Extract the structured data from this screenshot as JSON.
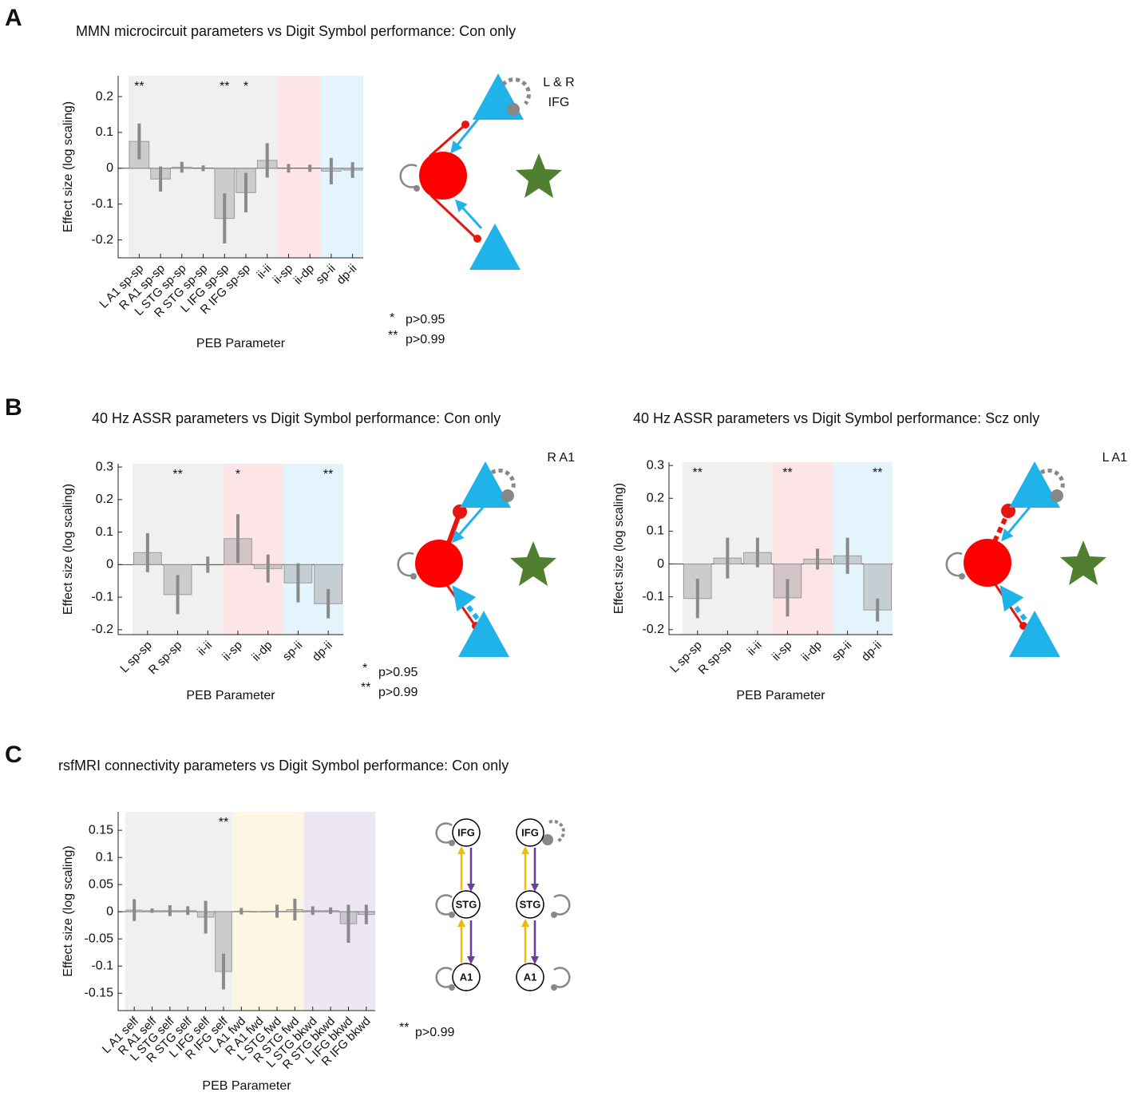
{
  "chart_data": [
    {
      "type": "bar",
      "title": "MMN microcircuit parameters vs Digit Symbol performance: Con only",
      "xlabel": "PEB Parameter",
      "ylabel": "Effect size (log scaling)",
      "categories": [
        "L A1 sp-sp",
        "R A1 sp-sp",
        "L STG sp-sp",
        "R STG sp-sp",
        "L IFG sp-sp",
        "R IFG sp-sp",
        "ii-ii",
        "ii-sp",
        "ii-dp",
        "sp-ii",
        "dp-ii"
      ],
      "values": [
        0.075,
        -0.03,
        0.003,
        0.0,
        -0.14,
        -0.068,
        0.022,
        0.0,
        0.0,
        -0.008,
        -0.005
      ],
      "errors": [
        0.05,
        0.035,
        0.015,
        0.008,
        0.07,
        0.055,
        0.048,
        0.012,
        0.01,
        0.037,
        0.022
      ],
      "stars": [
        "**",
        null,
        null,
        null,
        "**",
        "*",
        null,
        null,
        null,
        null,
        null
      ],
      "category_colors": [
        "#f0f0f0",
        "#f0f0f0",
        "#f0f0f0",
        "#f0f0f0",
        "#f0f0f0",
        "#f0f0f0",
        "#f0f0f0",
        "#fde4e7",
        "#fde4e7",
        "#e3f4fc",
        "#e3f4fc"
      ],
      "color": "#a0a0a0",
      "error_color": "#8a8a8a",
      "ylim": [
        -0.25,
        0.258
      ],
      "yticks": [
        -0.2,
        -0.1,
        0,
        0.1,
        0.2
      ]
    },
    {
      "type": "bar",
      "title": "40 Hz ASSR parameters vs Digit Symbol performance: Con only",
      "xlabel": "PEB Parameter",
      "ylabel": "Effect size (log scaling)",
      "categories": [
        "L sp-sp",
        "R sp-sp",
        "ii-ii",
        "ii-sp",
        "ii-dp",
        "sp-ii",
        "dp-ii"
      ],
      "values": [
        0.037,
        -0.092,
        0.0,
        0.08,
        -0.012,
        -0.056,
        -0.12
      ],
      "errors": [
        0.06,
        0.06,
        0.025,
        0.075,
        0.043,
        0.06,
        0.045
      ],
      "stars": [
        null,
        "**",
        null,
        "*",
        null,
        null,
        "**"
      ],
      "category_colors": [
        "#f0f0f0",
        "#f0f0f0",
        "#f0f0f0",
        "#fde4e7",
        "#fde4e7",
        "#e3f4fc",
        "#e3f4fc"
      ],
      "color": "#a0a0a0",
      "error_color": "#8a8a8a",
      "ylim": [
        -0.215,
        0.31
      ],
      "yticks": [
        -0.2,
        -0.1,
        0,
        0.1,
        0.2,
        0.3
      ]
    },
    {
      "type": "bar",
      "title": "40 Hz ASSR parameters vs Digit Symbol performance: Scz only",
      "xlabel": "PEB Parameter",
      "ylabel": "Effect size (log scaling)",
      "categories": [
        "L sp-sp",
        "R sp-sp",
        "ii-ii",
        "ii-sp",
        "ii-dp",
        "sp-ii",
        "dp-ii"
      ],
      "values": [
        -0.105,
        0.018,
        0.035,
        -0.103,
        0.015,
        0.025,
        -0.14
      ],
      "errors": [
        0.06,
        0.062,
        0.045,
        0.057,
        0.032,
        0.055,
        0.035
      ],
      "stars": [
        "**",
        null,
        null,
        "**",
        null,
        null,
        "**"
      ],
      "category_colors": [
        "#f0f0f0",
        "#f0f0f0",
        "#f0f0f0",
        "#fde4e7",
        "#fde4e7",
        "#e3f4fc",
        "#e3f4fc"
      ],
      "color": "#a0a0a0",
      "error_color": "#8a8a8a",
      "ylim": [
        -0.215,
        0.31
      ],
      "yticks": [
        -0.2,
        -0.1,
        0,
        0.1,
        0.2,
        0.3
      ]
    },
    {
      "type": "bar",
      "title": "rsfMRI connectivity parameters vs Digit Symbol performance: Con only",
      "xlabel": "PEB Parameter",
      "ylabel": "Effect size (log scaling)",
      "categories": [
        "L A1 self",
        "R A1 self",
        "L STG self",
        "R STG self",
        "L IFG self",
        "R IFG self",
        "L A1 fwd",
        "R A1 fwd",
        "L STG fwd",
        "R STG fwd",
        "L STG bkwd",
        "R STG bkwd",
        "L IFG bkwd",
        "R IFG bkwd"
      ],
      "values": [
        0.003,
        0.002,
        0.002,
        0.002,
        -0.01,
        -0.11,
        0.001,
        0.0,
        0.001,
        0.004,
        0.002,
        0.002,
        -0.022,
        -0.005
      ],
      "errors": [
        0.02,
        0.004,
        0.01,
        0.008,
        0.03,
        0.033,
        0.006,
        0.001,
        0.012,
        0.02,
        0.008,
        0.006,
        0.035,
        0.018
      ],
      "stars": [
        null,
        null,
        null,
        null,
        null,
        "**",
        null,
        null,
        null,
        null,
        null,
        null,
        null,
        null
      ],
      "category_colors": [
        "#f0f0f0",
        "#f0f0f0",
        "#f0f0f0",
        "#f0f0f0",
        "#f0f0f0",
        "#f0f0f0",
        "#fdf6e2",
        "#fdf6e2",
        "#fdf6e2",
        "#fdf6e2",
        "#ede6f4",
        "#ede6f4",
        "#ede6f4",
        "#ede6f4"
      ],
      "color": "#a0a0a0",
      "error_color": "#8a8a8a",
      "ylim": [
        -0.182,
        0.184
      ],
      "yticks": [
        -0.15,
        -0.1,
        -0.05,
        0,
        0.05,
        0.1,
        0.15
      ]
    }
  ],
  "panel_labels": [
    "A",
    "B",
    "C"
  ],
  "significance_legends": [
    [
      {
        "stars": "*",
        "text": "p>0.95"
      },
      {
        "stars": "**",
        "text": "p>0.99"
      }
    ],
    [
      {
        "stars": "*",
        "text": "p>0.95"
      },
      {
        "stars": "**",
        "text": "p>0.99"
      }
    ],
    [
      {
        "stars": "**",
        "text": "p>0.99"
      }
    ]
  ],
  "diagram_labels": {
    "a": [
      "L & R",
      "IFG"
    ],
    "b_con": "R A1",
    "b_scz": "L A1",
    "c_nodes": [
      "IFG",
      "STG",
      "A1",
      "IFG",
      "STG",
      "A1"
    ]
  }
}
